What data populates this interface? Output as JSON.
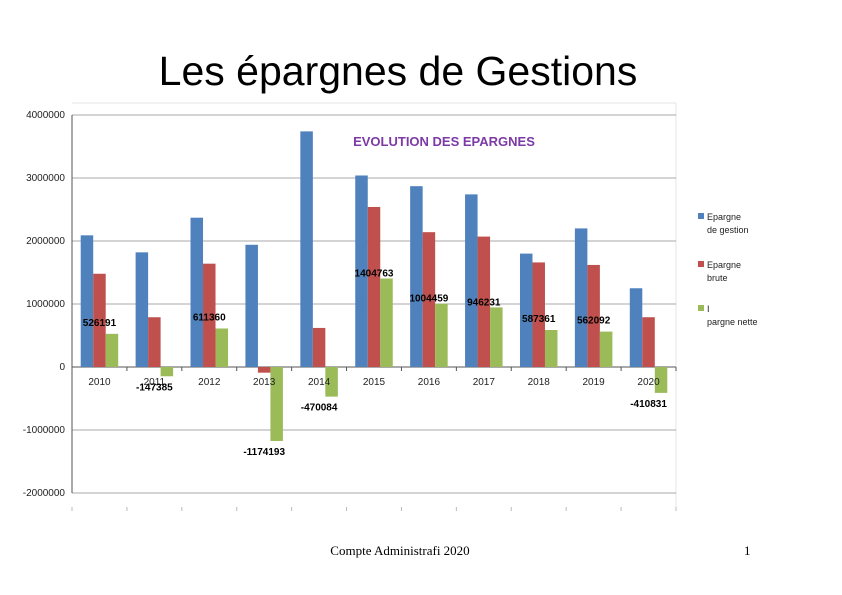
{
  "slide": {
    "title": "Les épargnes de Gestions",
    "footer": "Compte Administrafi 2020",
    "page_number": "1"
  },
  "chart_data": {
    "type": "bar",
    "title": "EVOLUTION DES EPARGNES",
    "xlabel": "",
    "ylabel": "",
    "ylim": [
      -2000000,
      4000000
    ],
    "yticks": [
      4000000,
      3000000,
      2000000,
      1000000,
      0,
      -1000000,
      -2000000
    ],
    "grid": true,
    "legend_position": "right",
    "categories": [
      "2010",
      "2011",
      "2012",
      "2013",
      "2014",
      "2015",
      "2016",
      "2017",
      "2018",
      "2019",
      "2020"
    ],
    "series": [
      {
        "name": "Epargne de gestion",
        "color": "#4f81bd",
        "values": [
          2090000,
          1820000,
          2370000,
          1940000,
          3740000,
          3040000,
          2870000,
          2740000,
          1800000,
          2200000,
          1250000
        ]
      },
      {
        "name": "Epargne brute",
        "color": "#c0504d",
        "values": [
          1480000,
          790000,
          1640000,
          -90000,
          620000,
          2540000,
          2140000,
          2070000,
          1660000,
          1620000,
          790000
        ]
      },
      {
        "name": "Epargne nette",
        "color": "#9bbb59",
        "values": [
          526191,
          -147385,
          611360,
          -1174193,
          -470084,
          1404763,
          1004459,
          946231,
          587361,
          562092,
          -410831
        ]
      }
    ],
    "data_labels": [
      "526191",
      "-147385",
      "611360",
      "-1174193",
      "-470084",
      "1404763",
      "1004459",
      "946231",
      "587361",
      "562092",
      "-410831"
    ],
    "legend_labels": [
      "Epargne de gestion",
      "Epargne brute",
      "I pargne nette"
    ]
  }
}
